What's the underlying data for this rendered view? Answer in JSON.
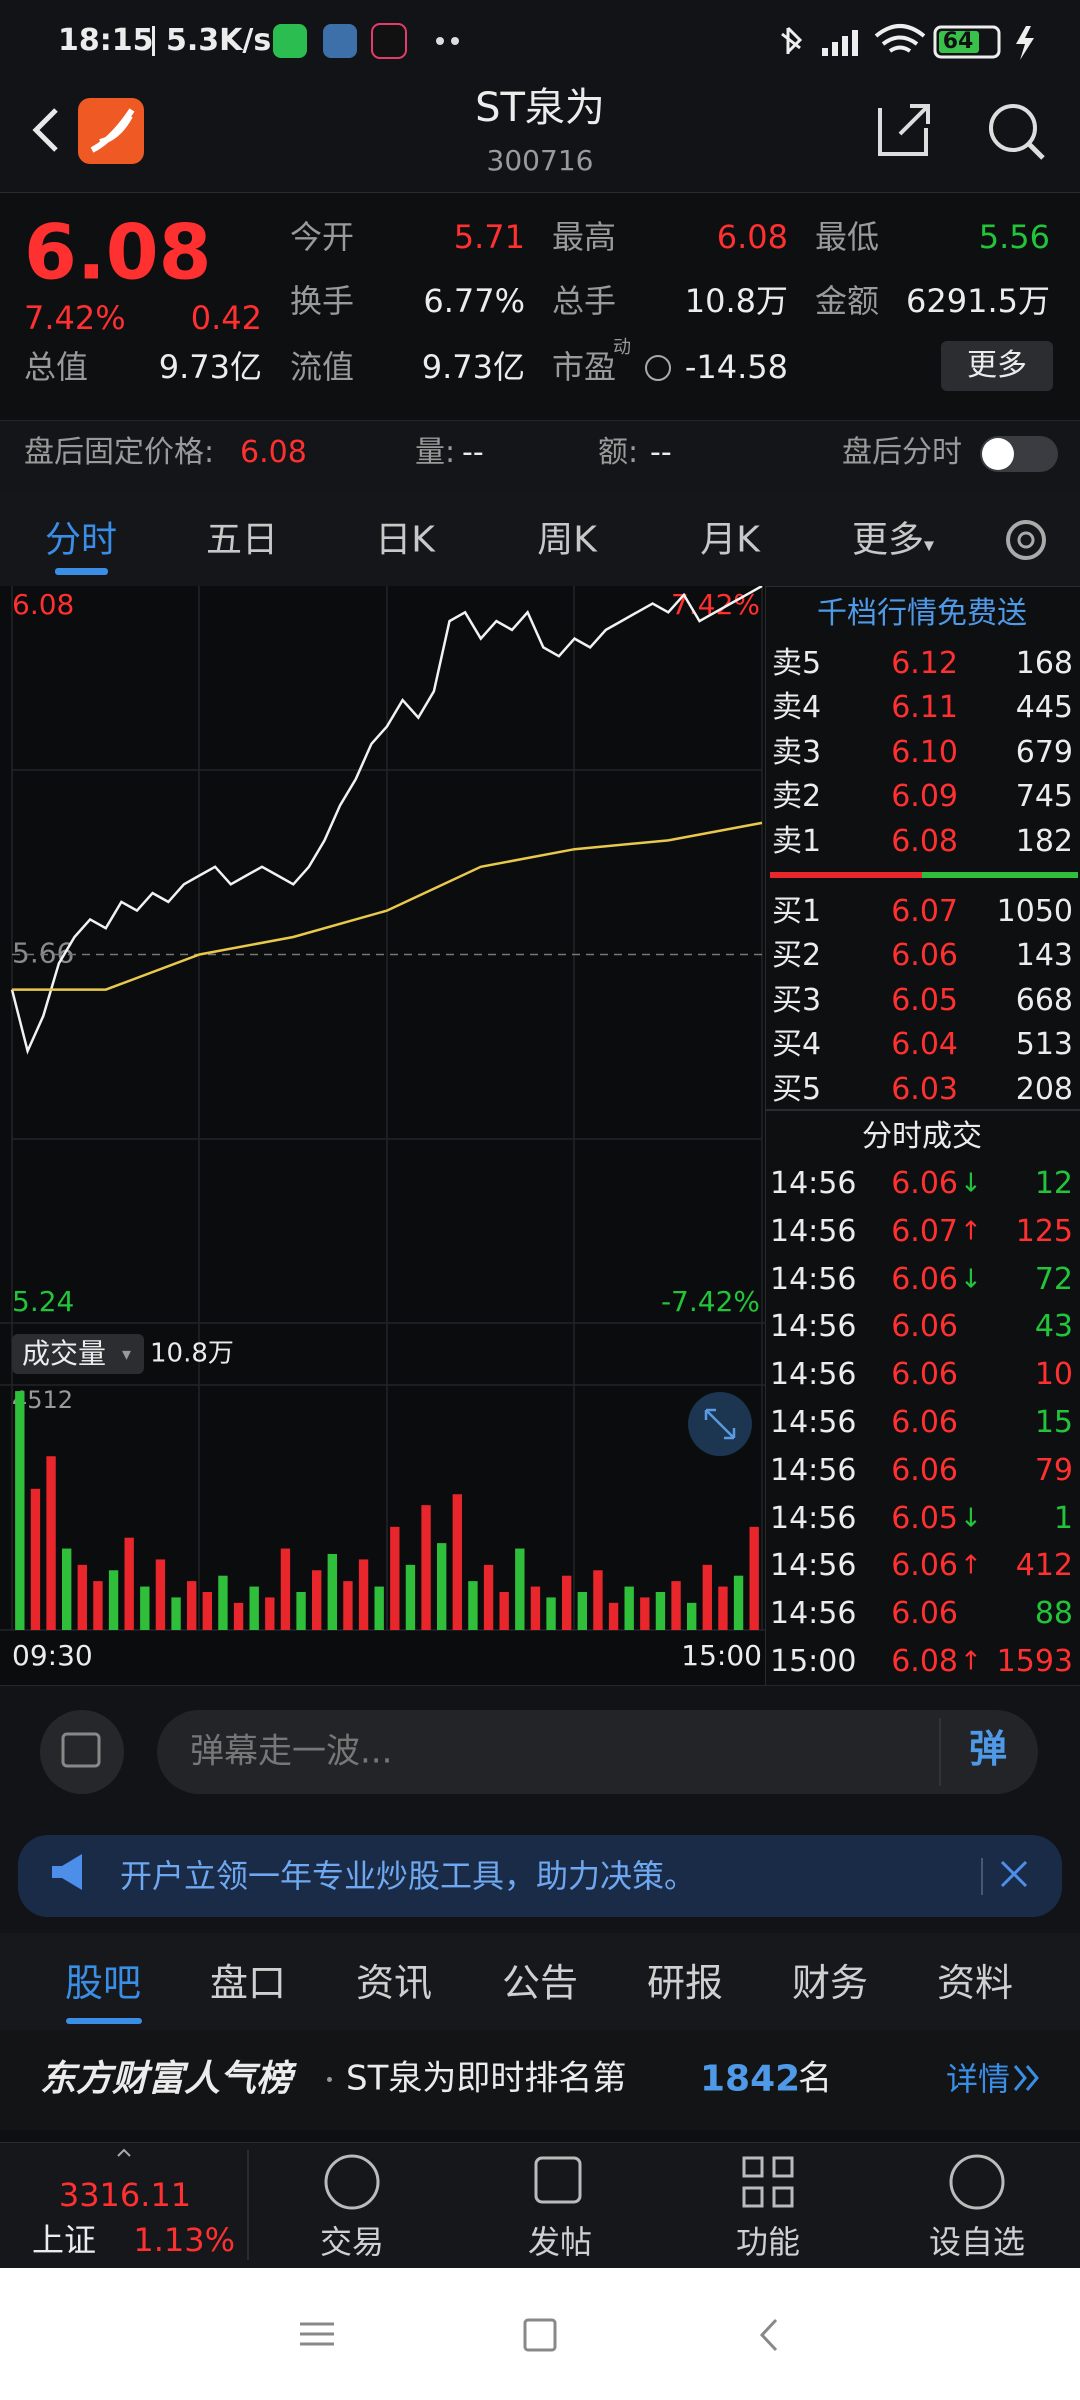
{
  "status_bar": {
    "time": "18:15",
    "speed": "5.3K/s",
    "battery": "64"
  },
  "header": {
    "title": "ST泉为",
    "code": "300716"
  },
  "quote": {
    "price": "6.08",
    "change_pct": "7.42%",
    "change": "0.42",
    "fields": [
      {
        "label": "今开",
        "value": "5.71",
        "color": "#ff3030"
      },
      {
        "label": "最高",
        "value": "6.08",
        "color": "#ff3030"
      },
      {
        "label": "最低",
        "value": "5.56",
        "color": "#22c43a"
      },
      {
        "label": "换手",
        "value": "6.77%",
        "color": "#ececec"
      },
      {
        "label": "总手",
        "value": "10.8万",
        "color": "#ececec"
      },
      {
        "label": "金额",
        "value": "6291.5万",
        "color": "#ececec"
      },
      {
        "label": "总值",
        "value": "9.73亿",
        "color": "#ececec"
      },
      {
        "label": "流值",
        "value": "9.73亿",
        "color": "#ececec"
      },
      {
        "label": "市盈",
        "value": "-14.58",
        "color": "#ececec"
      }
    ],
    "pe_badge": "动",
    "more": "更多"
  },
  "after_hours": {
    "price_label": "盘后固定价格:",
    "price": "6.08",
    "volume_label": "量:",
    "volume": "--",
    "amount_label": "额:",
    "amount": "--",
    "toggle_label": "盘后分时"
  },
  "tabs": [
    "分时",
    "五日",
    "日K",
    "周K",
    "月K",
    "更多"
  ],
  "chart_data": [
    {
      "type": "line",
      "ylim": [
        5.24,
        6.08
      ],
      "yticks": [
        5.24,
        5.66,
        6.08
      ],
      "y2lim": [
        -7.42,
        7.42
      ],
      "y2ticks": [
        {
          "value": -7.42,
          "label": "-7.42%"
        },
        {
          "value": 7.42,
          "label": "7.42%"
        }
      ],
      "xlim": [
        0,
        240
      ],
      "colors": {
        "up": "#ff3030",
        "down": "#22c43a",
        "flat": "#8a8a8a"
      },
      "series": [
        {
          "color": "#f2f2f2",
          "x": [
            0,
            5,
            10,
            15,
            20,
            25,
            30,
            35,
            40,
            45,
            50,
            55,
            60,
            65,
            70,
            75,
            80,
            85,
            90,
            95,
            100,
            105,
            110,
            115,
            120,
            125,
            130,
            135,
            140,
            145,
            150,
            155,
            160,
            165,
            170,
            175,
            180,
            185,
            190,
            195,
            200,
            205,
            210,
            215,
            220,
            225,
            230,
            235,
            240
          ],
          "values": [
            5.62,
            5.55,
            5.59,
            5.65,
            5.68,
            5.7,
            5.69,
            5.72,
            5.71,
            5.73,
            5.72,
            5.74,
            5.75,
            5.76,
            5.74,
            5.75,
            5.76,
            5.75,
            5.74,
            5.76,
            5.79,
            5.83,
            5.86,
            5.9,
            5.92,
            5.95,
            5.93,
            5.96,
            6.04,
            6.05,
            6.02,
            6.04,
            6.03,
            6.05,
            6.01,
            6.0,
            6.02,
            6.01,
            6.03,
            6.04,
            6.05,
            6.06,
            6.05,
            6.07,
            6.04,
            6.05,
            6.06,
            6.07,
            6.08
          ]
        },
        {
          "color": "#e9c94c",
          "x": [
            0,
            30,
            60,
            90,
            120,
            150,
            180,
            210,
            240
          ],
          "values": [
            5.62,
            5.62,
            5.66,
            5.68,
            5.71,
            5.76,
            5.78,
            5.79,
            5.81
          ]
        }
      ]
    },
    {
      "type": "bar",
      "title": "成交量",
      "subtitle": "10.8万",
      "ylim": [
        0,
        4512
      ],
      "yticks": [
        4512
      ],
      "xticks": [
        {
          "value": 0,
          "label": "09:30"
        },
        {
          "value": 240,
          "label": "15:00"
        }
      ],
      "values": [
        4400,
        2600,
        3200,
        1500,
        1200,
        900,
        1100,
        1700,
        800,
        1300,
        600,
        900,
        700,
        1000,
        500,
        800,
        600,
        1500,
        700,
        1100,
        1400,
        900,
        1300,
        800,
        1900,
        1200,
        2300,
        1600,
        2500,
        900,
        1200,
        700,
        1500,
        800,
        600,
        1000,
        700,
        1100,
        500,
        800,
        600,
        700,
        900,
        500,
        1200,
        800,
        1000,
        1900
      ],
      "colors": [
        "#2fbf3a",
        "#e8262b",
        "#e8262b",
        "#2fbf3a",
        "#e8262b",
        "#e8262b",
        "#2fbf3a",
        "#e8262b",
        "#2fbf3a",
        "#e8262b",
        "#2fbf3a",
        "#e8262b",
        "#e8262b",
        "#2fbf3a",
        "#e8262b",
        "#2fbf3a",
        "#e8262b",
        "#e8262b",
        "#2fbf3a",
        "#e8262b",
        "#2fbf3a",
        "#e8262b",
        "#e8262b",
        "#2fbf3a",
        "#e8262b",
        "#2fbf3a",
        "#e8262b",
        "#2fbf3a",
        "#e8262b",
        "#2fbf3a",
        "#e8262b",
        "#e8262b",
        "#2fbf3a",
        "#e8262b",
        "#2fbf3a",
        "#e8262b",
        "#2fbf3a",
        "#e8262b",
        "#e8262b",
        "#2fbf3a",
        "#e8262b",
        "#2fbf3a",
        "#e8262b",
        "#2fbf3a",
        "#e8262b",
        "#e8262b",
        "#2fbf3a",
        "#e8262b"
      ]
    }
  ],
  "order_book": {
    "banner": "千档行情免费送",
    "asks": [
      {
        "label": "卖5",
        "price": "6.12",
        "volume": "168"
      },
      {
        "label": "卖4",
        "price": "6.11",
        "volume": "445"
      },
      {
        "label": "卖3",
        "price": "6.10",
        "volume": "679"
      },
      {
        "label": "卖2",
        "price": "6.09",
        "volume": "745"
      },
      {
        "label": "卖1",
        "price": "6.08",
        "volume": "182"
      }
    ],
    "bids": [
      {
        "label": "买1",
        "price": "6.07",
        "volume": "1050"
      },
      {
        "label": "买2",
        "price": "6.06",
        "volume": "143"
      },
      {
        "label": "买3",
        "price": "6.05",
        "volume": "668"
      },
      {
        "label": "买4",
        "price": "6.04",
        "volume": "513"
      },
      {
        "label": "买5",
        "price": "6.03",
        "volume": "208"
      }
    ]
  },
  "trades": {
    "title": "分时成交",
    "rows": [
      {
        "time": "14:56",
        "price": "6.06",
        "dir": "↓",
        "volume": "12",
        "color": "#22c43a"
      },
      {
        "time": "14:56",
        "price": "6.07",
        "dir": "↑",
        "volume": "125",
        "color": "#ff3030"
      },
      {
        "time": "14:56",
        "price": "6.06",
        "dir": "↓",
        "volume": "72",
        "color": "#22c43a"
      },
      {
        "time": "14:56",
        "price": "6.06",
        "volume": "43",
        "color": "#22c43a"
      },
      {
        "time": "14:56",
        "price": "6.06",
        "volume": "10",
        "color": "#ff3030"
      },
      {
        "time": "14:56",
        "price": "6.06",
        "volume": "15",
        "color": "#22c43a"
      },
      {
        "time": "14:56",
        "price": "6.06",
        "volume": "79",
        "color": "#ff3030"
      },
      {
        "time": "14:56",
        "price": "6.05",
        "dir": "↓",
        "volume": "1",
        "color": "#22c43a"
      },
      {
        "time": "14:56",
        "price": "6.06",
        "dir": "↑",
        "volume": "412",
        "color": "#ff3030"
      },
      {
        "time": "14:56",
        "price": "6.06",
        "volume": "88",
        "color": "#22c43a"
      },
      {
        "time": "15:00",
        "price": "6.08",
        "dir": "↑",
        "volume": "1593",
        "color": "#ff3030"
      }
    ]
  },
  "danmu": {
    "placeholder": "弹幕走一波...",
    "button": "弹"
  },
  "ad": {
    "text": "开户立领一年专业炒股工具，助力决策。"
  },
  "section_tabs": [
    "股吧",
    "盘口",
    "资讯",
    "公告",
    "研报",
    "财务",
    "资料"
  ],
  "ranking": {
    "brand": "东方财富人气榜",
    "text": "ST泉为即时排名第",
    "rank": "1842",
    "unit": "名",
    "link": "详情"
  },
  "bottom_nav": {
    "index_value": "3316.11",
    "index_name": "上证",
    "index_change": "1.13%",
    "items": [
      "交易",
      "发帖",
      "功能",
      "设自选"
    ]
  }
}
